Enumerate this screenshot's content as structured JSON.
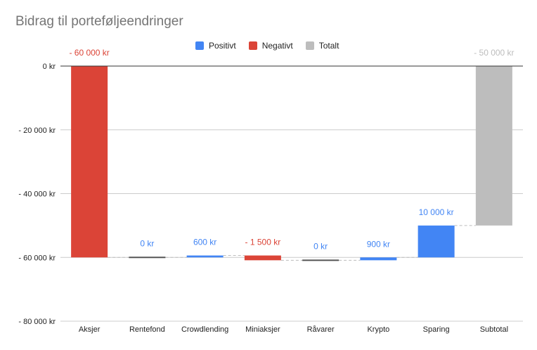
{
  "chart_data": {
    "type": "bar",
    "subtype": "waterfall",
    "title": "Bidrag til porteføljeendringer",
    "legend": {
      "position": "top",
      "items": [
        {
          "name": "Positivt",
          "color": "#4285f4"
        },
        {
          "name": "Negativt",
          "color": "#db4437"
        },
        {
          "name": "Totalt",
          "color": "#bdbdbd"
        }
      ]
    },
    "categories": [
      "Aksjer",
      "Rentefond",
      "Crowdlending",
      "Miniaksjer",
      "Råvarer",
      "Krypto",
      "Sparing",
      "Subtotal"
    ],
    "bars": [
      {
        "category": "Aksjer",
        "start": 0,
        "end": -60000,
        "kind": "negative",
        "label": "- 60 000 kr"
      },
      {
        "category": "Rentefond",
        "start": -60000,
        "end": -60000,
        "kind": "positive",
        "label": "0 kr"
      },
      {
        "category": "Crowdlending",
        "start": -60000,
        "end": -59400,
        "kind": "positive",
        "label": "600 kr"
      },
      {
        "category": "Miniaksjer",
        "start": -59400,
        "end": -60900,
        "kind": "negative",
        "label": "- 1 500 kr"
      },
      {
        "category": "Råvarer",
        "start": -60900,
        "end": -60900,
        "kind": "positive",
        "label": "0 kr"
      },
      {
        "category": "Krypto",
        "start": -60900,
        "end": -60000,
        "kind": "positive",
        "label": "900 kr"
      },
      {
        "category": "Sparing",
        "start": -60000,
        "end": -50000,
        "kind": "positive",
        "label": "10 000 kr"
      },
      {
        "category": "Subtotal",
        "start": 0,
        "end": -50000,
        "kind": "total",
        "label": "- 50 000 kr"
      }
    ],
    "y_axis": {
      "min": -80000,
      "max": 0,
      "ticks": [
        0,
        -20000,
        -40000,
        -60000,
        -80000
      ],
      "tick_labels": [
        "0 kr",
        "- 20 000 kr",
        "- 40 000 kr",
        "- 60 000 kr",
        "- 80 000 kr"
      ]
    },
    "grid": true,
    "colors": {
      "positive": "#4285f4",
      "negative": "#db4437",
      "total": "#bdbdbd",
      "connector": "#bdbdbd",
      "zero_line": "#333333",
      "grid": "#cccccc"
    }
  }
}
